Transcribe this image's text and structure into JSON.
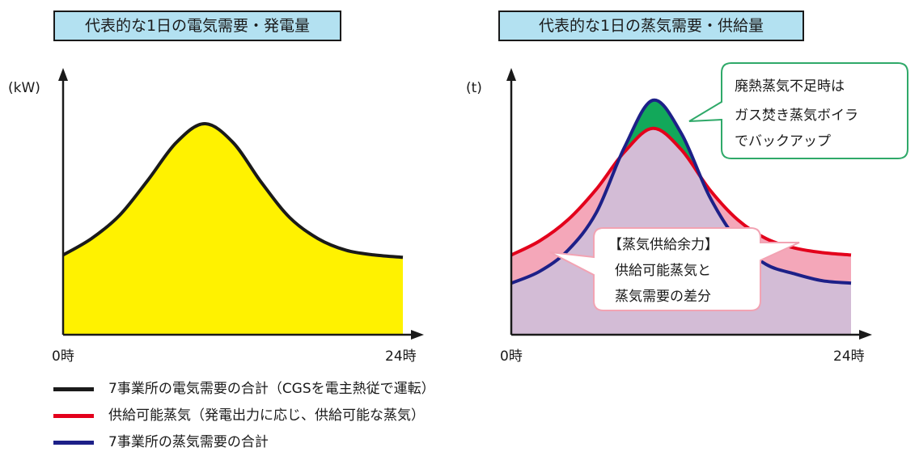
{
  "titles": {
    "left": "代表的な1日の電気需要・発電量",
    "right": "代表的な1日の蒸気需要・供給量"
  },
  "chart_data": [
    {
      "type": "area",
      "title": "代表的な1日の電気需要・発電量",
      "ylabel": "(kW)",
      "x_start_label": "0時",
      "x_end_label": "24時",
      "xlim": [
        0,
        24
      ],
      "ylim": [
        0,
        100
      ],
      "series": [
        {
          "name": "7事業所の電気需要の合計（CGSを電主熱従で運転）",
          "x": [
            0,
            2,
            4,
            6,
            8,
            10,
            12,
            14,
            16,
            18,
            20,
            22,
            24
          ],
          "values": [
            34,
            41,
            51,
            66,
            82,
            90,
            82,
            65,
            50,
            41,
            36,
            34,
            33
          ]
        }
      ]
    },
    {
      "type": "area",
      "title": "代表的な1日の蒸気需要・供給量",
      "ylabel": "(t)",
      "x_start_label": "0時",
      "x_end_label": "24時",
      "xlim": [
        0,
        24
      ],
      "ylim": [
        0,
        100
      ],
      "series": [
        {
          "name": "供給可能蒸気（発電出力に応じ、供給可能な蒸気）",
          "x": [
            0,
            2,
            4,
            6,
            8,
            10,
            12,
            14,
            16,
            18,
            20,
            22,
            24
          ],
          "values": [
            34,
            40,
            49,
            62,
            78,
            88,
            79,
            62,
            49,
            41,
            37,
            35,
            34
          ]
        },
        {
          "name": "7事業所の蒸気需要の合計",
          "x": [
            0,
            2,
            4,
            6,
            8,
            10,
            12,
            14,
            16,
            18,
            20,
            22,
            24
          ],
          "values": [
            22,
            27,
            36,
            52,
            80,
            100,
            86,
            59,
            40,
            30,
            26,
            23,
            22
          ]
        }
      ]
    }
  ],
  "callouts": {
    "boiler": [
      "廃熱蒸気不足時は",
      "ガス焚き蒸気ボイラ",
      "でバックアップ"
    ],
    "surplus": [
      "【蒸気供給余力】",
      "供給可能蒸気と",
      "蒸気需要の差分"
    ]
  },
  "colors": {
    "electricity_fill": "#fff200",
    "electricity_line": "#1a1a1a",
    "supply_line": "#e3001b",
    "demand_line": "#1d2088",
    "surplus_fill": "#f4a7b9",
    "base_fill": "#d3bcd6",
    "deficit_fill": "#12a85a",
    "callout_border_green": "#2fa969",
    "callout_border_pink": "#f2a3b3",
    "title_bg": "#b3e1f1"
  },
  "legend": [
    {
      "label": "7事業所の電気需要の合計（CGSを電主熱従で運転）",
      "color": "#1a1a1a"
    },
    {
      "label": "供給可能蒸気（発電出力に応じ、供給可能な蒸気）",
      "color": "#e3001b"
    },
    {
      "label": "7事業所の蒸気需要の合計",
      "color": "#1d2088"
    }
  ]
}
